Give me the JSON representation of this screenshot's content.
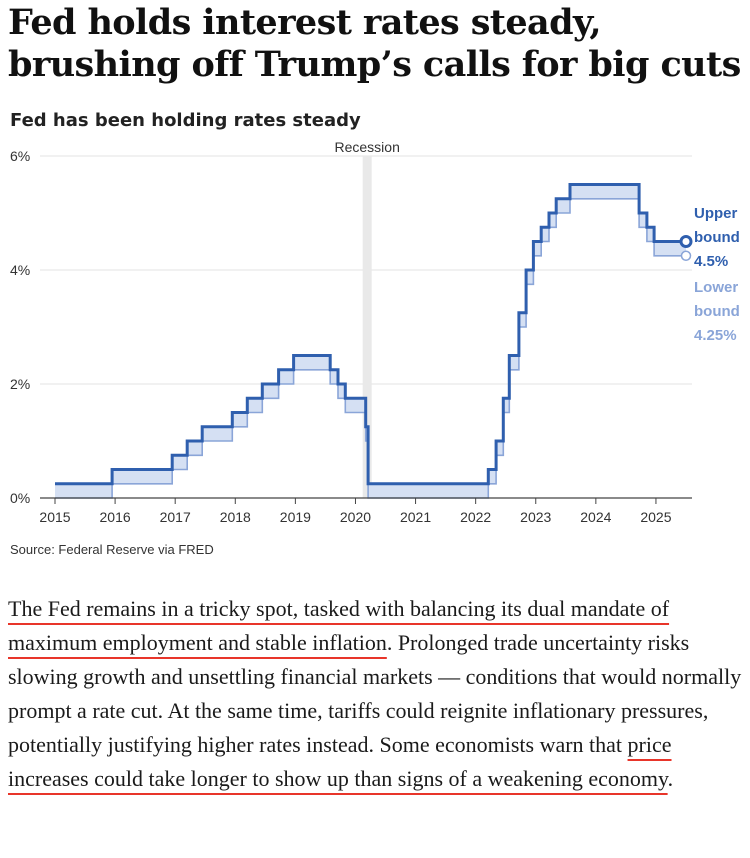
{
  "article": {
    "headline": "Fed holds interest rates steady, brushing off Trump’s calls for big cuts",
    "source": "Source: Federal Reserve via FRED",
    "paragraph": {
      "highlight1": "The Fed remains in a tricky spot, tasked with balancing its dual mandate of maximum employment and stable inflation",
      "text1": ". Prolonged trade uncertainty risks slowing growth and unsettling financial markets — conditions that would normally prompt a rate cut. At the same time, tariffs could reignite inflationary pressures, potentially justifying higher rates instead. Some economists warn that ",
      "highlight2": "price increases could take longer to show up than signs of a weakening economy",
      "text2": "."
    }
  },
  "colors": {
    "upper": "#2f5fae",
    "lower": "#8aa5d8",
    "fill": "#d5e0f3",
    "recession": "#e9e9e9",
    "grid": "#e3e3e3",
    "axis": "#444444",
    "highlight_underline": "#e8352a"
  },
  "chart_data": {
    "type": "line",
    "title": "Fed has been holding rates steady",
    "xlabel": "",
    "ylabel": "",
    "xlim": [
      2015,
      2025.6
    ],
    "ylim": [
      0,
      6
    ],
    "x_ticks": [
      {
        "value": 2015,
        "label": "2015"
      },
      {
        "value": 2016,
        "label": "2016"
      },
      {
        "value": 2017,
        "label": "2017"
      },
      {
        "value": 2018,
        "label": "2018"
      },
      {
        "value": 2019,
        "label": "2019"
      },
      {
        "value": 2020,
        "label": "2020"
      },
      {
        "value": 2021,
        "label": "2021"
      },
      {
        "value": 2022,
        "label": "2022"
      },
      {
        "value": 2023,
        "label": "2023"
      },
      {
        "value": 2024,
        "label": "2024"
      },
      {
        "value": 2025,
        "label": "2025"
      }
    ],
    "y_ticks": [
      {
        "value": 0,
        "label": "0%"
      },
      {
        "value": 2,
        "label": "2%"
      },
      {
        "value": 4,
        "label": "4%"
      },
      {
        "value": 6,
        "label": "6%"
      }
    ],
    "recession": {
      "label": "Recession",
      "start": 2020.12,
      "end": 2020.27
    },
    "series": [
      {
        "name": "Upper bound",
        "label_lines": [
          "Upper",
          "bound",
          "4.5%"
        ],
        "end_value": 4.5,
        "points": [
          [
            2015.0,
            0.25
          ],
          [
            2015.95,
            0.5
          ],
          [
            2016.95,
            0.75
          ],
          [
            2017.2,
            1.0
          ],
          [
            2017.45,
            1.25
          ],
          [
            2017.95,
            1.5
          ],
          [
            2018.2,
            1.75
          ],
          [
            2018.45,
            2.0
          ],
          [
            2018.72,
            2.25
          ],
          [
            2018.97,
            2.5
          ],
          [
            2019.58,
            2.25
          ],
          [
            2019.71,
            2.0
          ],
          [
            2019.83,
            1.75
          ],
          [
            2020.17,
            1.25
          ],
          [
            2020.21,
            0.25
          ],
          [
            2022.21,
            0.5
          ],
          [
            2022.34,
            1.0
          ],
          [
            2022.46,
            1.75
          ],
          [
            2022.56,
            2.5
          ],
          [
            2022.72,
            3.25
          ],
          [
            2022.84,
            4.0
          ],
          [
            2022.96,
            4.5
          ],
          [
            2023.09,
            4.75
          ],
          [
            2023.22,
            5.0
          ],
          [
            2023.34,
            5.25
          ],
          [
            2023.57,
            5.5
          ],
          [
            2024.72,
            5.0
          ],
          [
            2024.85,
            4.75
          ],
          [
            2024.97,
            4.5
          ],
          [
            2025.5,
            4.5
          ]
        ]
      },
      {
        "name": "Lower bound",
        "label_lines": [
          "Lower",
          "bound",
          "4.25%"
        ],
        "end_value": 4.25,
        "points": [
          [
            2015.0,
            0.0
          ],
          [
            2015.95,
            0.25
          ],
          [
            2016.95,
            0.5
          ],
          [
            2017.2,
            0.75
          ],
          [
            2017.45,
            1.0
          ],
          [
            2017.95,
            1.25
          ],
          [
            2018.2,
            1.5
          ],
          [
            2018.45,
            1.75
          ],
          [
            2018.72,
            2.0
          ],
          [
            2018.97,
            2.25
          ],
          [
            2019.58,
            2.0
          ],
          [
            2019.71,
            1.75
          ],
          [
            2019.83,
            1.5
          ],
          [
            2020.17,
            1.0
          ],
          [
            2020.21,
            0.0
          ],
          [
            2022.21,
            0.25
          ],
          [
            2022.34,
            0.75
          ],
          [
            2022.46,
            1.5
          ],
          [
            2022.56,
            2.25
          ],
          [
            2022.72,
            3.0
          ],
          [
            2022.84,
            3.75
          ],
          [
            2022.96,
            4.25
          ],
          [
            2023.09,
            4.5
          ],
          [
            2023.22,
            4.75
          ],
          [
            2023.34,
            5.0
          ],
          [
            2023.57,
            5.25
          ],
          [
            2024.72,
            4.75
          ],
          [
            2024.85,
            4.5
          ],
          [
            2024.97,
            4.25
          ],
          [
            2025.5,
            4.25
          ]
        ]
      }
    ]
  }
}
